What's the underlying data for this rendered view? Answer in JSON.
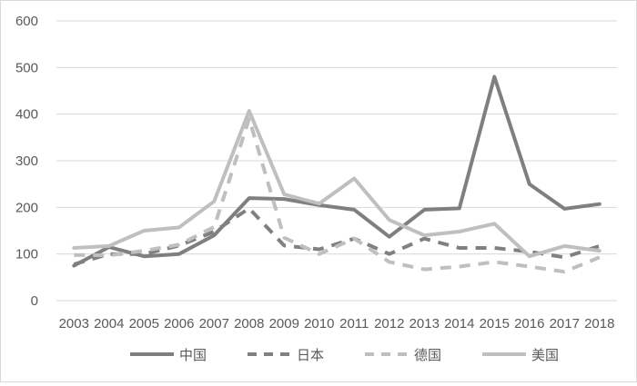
{
  "chart_data": {
    "type": "line",
    "title": "",
    "xlabel": "",
    "ylabel": "",
    "ylim": [
      0,
      600
    ],
    "yticks": [
      0,
      100,
      200,
      300,
      400,
      500,
      600
    ],
    "grid": "horizontal",
    "legend_position": "bottom",
    "categories": [
      "2003",
      "2004",
      "2005",
      "2006",
      "2007",
      "2008",
      "2009",
      "2010",
      "2011",
      "2012",
      "2013",
      "2014",
      "2015",
      "2016",
      "2017",
      "2018"
    ],
    "series": [
      {
        "name": "中国",
        "color": "#7f7f7f",
        "dash": "solid",
        "values": [
          75,
          115,
          95,
          100,
          140,
          220,
          218,
          205,
          195,
          137,
          195,
          198,
          480,
          250,
          197,
          207
        ]
      },
      {
        "name": "日本",
        "color": "#808080",
        "dash": "dashed",
        "values": [
          78,
          100,
          100,
          118,
          148,
          198,
          118,
          110,
          133,
          100,
          133,
          113,
          113,
          105,
          93,
          117
        ]
      },
      {
        "name": "德国",
        "color": "#bfbfbf",
        "dash": "dashed",
        "values": [
          98,
          97,
          107,
          120,
          158,
          390,
          135,
          100,
          133,
          83,
          67,
          73,
          83,
          73,
          62,
          93
        ]
      },
      {
        "name": "美国",
        "color": "#bfbfbf",
        "dash": "solid",
        "values": [
          113,
          117,
          150,
          157,
          213,
          407,
          228,
          208,
          262,
          173,
          140,
          148,
          165,
          95,
          117,
          107
        ]
      }
    ]
  }
}
